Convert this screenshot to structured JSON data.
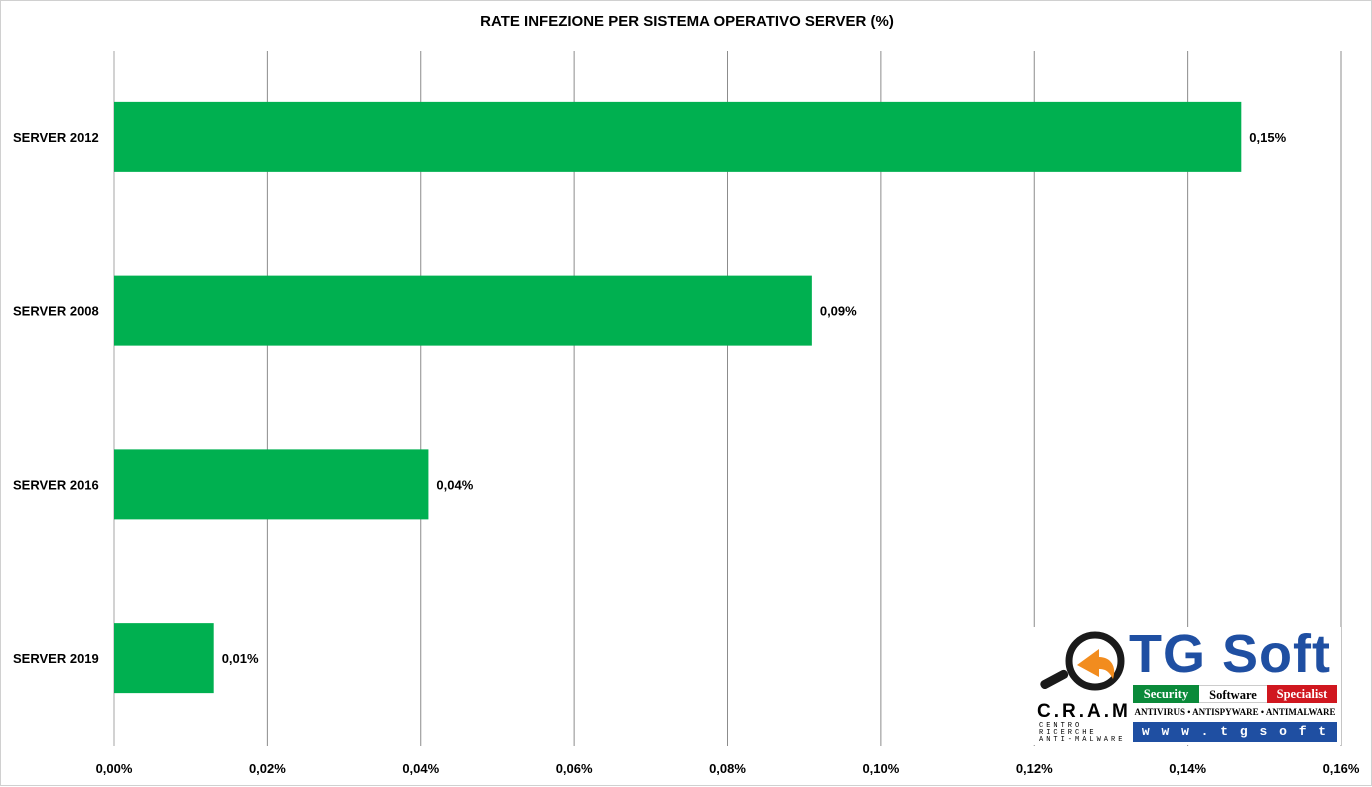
{
  "chart_data": {
    "type": "bar",
    "orientation": "horizontal",
    "title": "RATE INFEZIONE PER SISTEMA OPERATIVO SERVER (%)",
    "categories": [
      "SERVER 2012",
      "SERVER 2008",
      "SERVER 2016",
      "SERVER 2019"
    ],
    "values": [
      0.147,
      0.091,
      0.041,
      0.013
    ],
    "data_labels": [
      "0,15%",
      "0,09%",
      "0,04%",
      "0,01%"
    ],
    "x_ticks": [
      0,
      0.02,
      0.04,
      0.06,
      0.08,
      0.1,
      0.12,
      0.14,
      0.16
    ],
    "x_tick_labels": [
      "0,00%",
      "0,02%",
      "0,04%",
      "0,06%",
      "0,08%",
      "0,10%",
      "0,12%",
      "0,14%",
      "0,16%"
    ],
    "xlim": [
      0,
      0.16
    ],
    "grid": "vertical",
    "legend": "none",
    "bar_color": "#00b050"
  },
  "logo": {
    "cram_text": "C.R.A.M",
    "cram_sub": "CENTRO RICERCHE ANTI-MALWARE",
    "brand": "TG Soft",
    "tagline": [
      "Security",
      "Software",
      "Specialist"
    ],
    "products": "ANTIVIRUS • ANTISPYWARE • ANTIMALWARE",
    "url": "w w w . t g s o f t . i t",
    "colors": {
      "blue": "#1f4fa2",
      "green": "#0a8a3a",
      "red": "#d0171f",
      "orange": "#f28c1e"
    }
  }
}
